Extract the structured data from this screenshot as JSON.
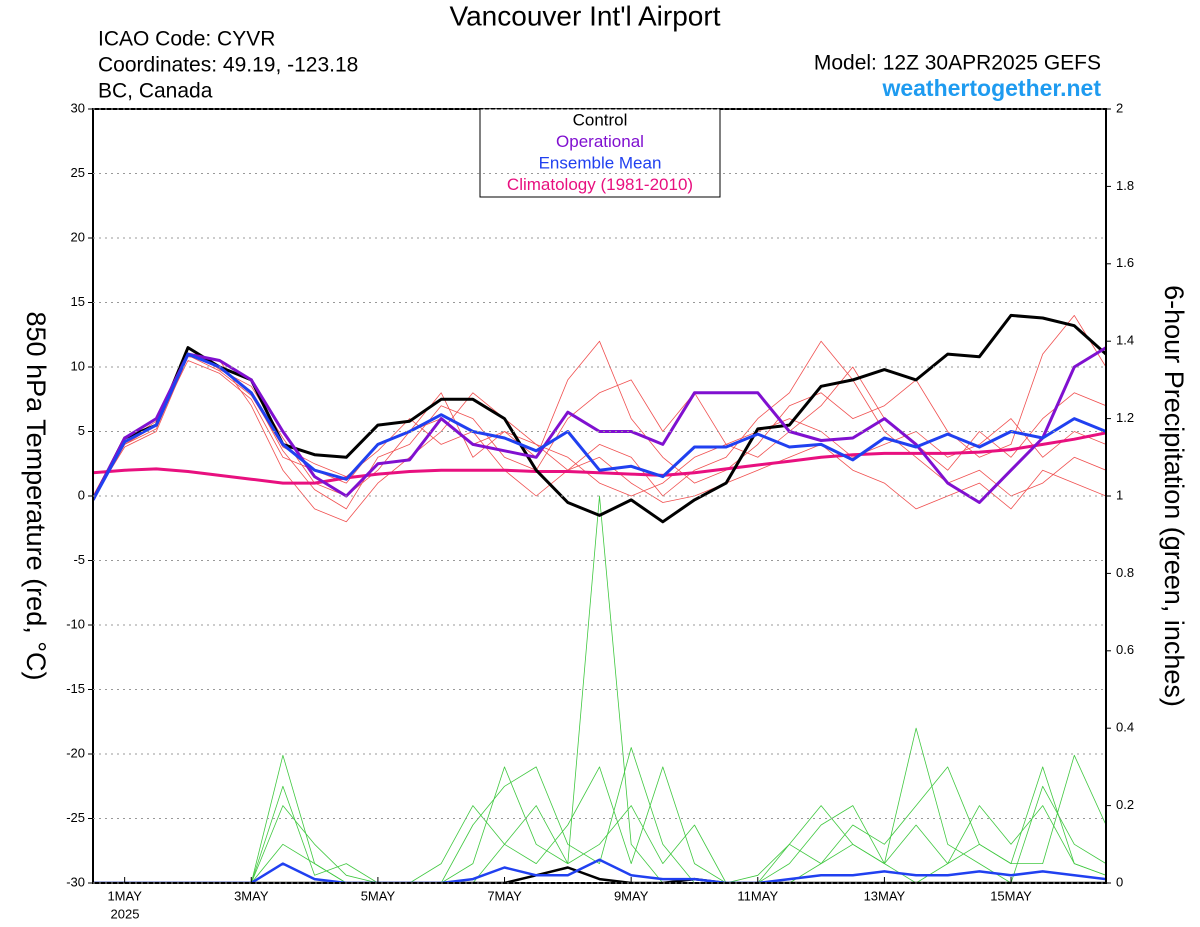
{
  "chart_data": {
    "type": "line",
    "title": "Vancouver Int'l Airport",
    "info_lines": [
      "ICAO Code: CYVR",
      "Coordinates: 49.19, -123.18",
      "BC, Canada"
    ],
    "model": "Model: 12Z 30APR2025 GEFS",
    "site": "weathertogether.net",
    "ylabel": "850 hPa Temperature (red, °C)",
    "y2label": "6-hour Precipitation (green, inches)",
    "x_year_label": "2025",
    "x": [
      0.5,
      1,
      1.5,
      2,
      2.5,
      3,
      3.5,
      4,
      4.5,
      5,
      5.5,
      6,
      6.5,
      7,
      7.5,
      8,
      8.5,
      9,
      9.5,
      10,
      10.5,
      11,
      11.5,
      12,
      12.5,
      13,
      13.5,
      14,
      14.5,
      15,
      15.5,
      16,
      16.5
    ],
    "xlim": [
      0.5,
      16.5
    ],
    "xticks": [
      {
        "value": 1,
        "label": "1MAY"
      },
      {
        "value": 3,
        "label": "3MAY"
      },
      {
        "value": 5,
        "label": "5MAY"
      },
      {
        "value": 7,
        "label": "7MAY"
      },
      {
        "value": 9,
        "label": "9MAY"
      },
      {
        "value": 11,
        "label": "11MAY"
      },
      {
        "value": 13,
        "label": "13MAY"
      },
      {
        "value": 15,
        "label": "15MAY"
      }
    ],
    "ylim": [
      -30,
      30
    ],
    "yticks": [
      -30,
      -25,
      -20,
      -15,
      -10,
      -5,
      0,
      5,
      10,
      15,
      20,
      25,
      30
    ],
    "y2lim": [
      0,
      2
    ],
    "y2ticks": [
      0,
      0.2,
      0.4,
      0.6,
      0.8,
      1,
      1.2,
      1.4,
      1.6,
      1.8,
      2
    ],
    "grid": true,
    "legend": "top",
    "series": [
      {
        "name": "Control",
        "color": "#000000",
        "values": [
          -0.3,
          4.5,
          5.5,
          11.5,
          10,
          9,
          4,
          3.2,
          3,
          5.5,
          5.8,
          7.5,
          7.5,
          6,
          2,
          -0.5,
          -1.5,
          -0.3,
          -2,
          -0.3,
          1,
          5.2,
          5.5,
          8.5,
          9,
          9.8,
          9,
          11,
          10.8,
          14,
          13.8,
          13.2,
          11
        ]
      },
      {
        "name": "Operational",
        "color": "#8010d0",
        "values": [
          -0.3,
          4.5,
          6,
          11,
          10.5,
          9,
          5,
          1.5,
          0,
          2.5,
          2.8,
          6,
          4,
          3.5,
          3,
          6.5,
          5,
          5,
          4,
          8,
          8,
          8,
          5,
          4.3,
          4.5,
          6,
          4,
          1,
          -0.5,
          2,
          4.5,
          10,
          11.5
        ]
      },
      {
        "name": "Ensemble Mean",
        "color": "#2040f0",
        "values": [
          -0.3,
          4.2,
          5.5,
          11,
          10,
          8,
          4,
          2,
          1.3,
          4,
          5,
          6.3,
          5,
          4.5,
          3.5,
          5,
          2,
          2.3,
          1.5,
          3.8,
          3.8,
          4.8,
          3.8,
          4,
          2.8,
          4.5,
          3.8,
          4.8,
          3.8,
          5,
          4.5,
          6,
          5
        ]
      },
      {
        "name": "Climatology (1981-2010)",
        "color": "#e8107f",
        "values": [
          1.8,
          2.0,
          2.1,
          1.9,
          1.6,
          1.3,
          1.0,
          1.0,
          1.4,
          1.7,
          1.9,
          2.0,
          2.0,
          2.0,
          1.9,
          1.9,
          1.8,
          1.7,
          1.6,
          1.8,
          2.1,
          2.4,
          2.7,
          3.0,
          3.2,
          3.3,
          3.3,
          3.3,
          3.4,
          3.6,
          4.0,
          4.4,
          4.9
        ]
      }
    ],
    "precip_series": [
      {
        "color": "#000000",
        "axis": "y2",
        "values": [
          0,
          0,
          0,
          0,
          0,
          0,
          0,
          0,
          0,
          0,
          0,
          0,
          0,
          0,
          0.02,
          0.04,
          0.01,
          0,
          0,
          0.01,
          0,
          0,
          0,
          0,
          0,
          0,
          0,
          0,
          0,
          0,
          0,
          0,
          0
        ]
      },
      {
        "color": "#2040f0",
        "axis": "y2",
        "values": [
          0,
          0,
          0,
          0,
          0,
          0,
          0.05,
          0.01,
          0,
          0,
          0,
          0,
          0.01,
          0.04,
          0.02,
          0.02,
          0.06,
          0.02,
          0.01,
          0.01,
          0,
          0,
          0.01,
          0.02,
          0.02,
          0.03,
          0.02,
          0.02,
          0.03,
          0.02,
          0.03,
          0.02,
          0.01
        ]
      }
    ],
    "ensemble_temperature": {
      "color": "#f05050",
      "values": [
        [
          -0.3,
          4,
          5.5,
          10.5,
          9.5,
          7.5,
          3,
          2,
          1,
          4,
          5,
          6,
          4,
          5,
          4,
          3,
          1,
          0,
          1,
          3,
          4,
          5,
          6,
          5,
          3,
          4,
          5,
          3,
          4,
          6,
          3,
          5,
          4
        ],
        [
          0,
          4.5,
          6,
          11,
          10,
          8,
          3.5,
          0.5,
          -1,
          3,
          4,
          7,
          6,
          3,
          2,
          6,
          8,
          9,
          5,
          8,
          4,
          3,
          5,
          7,
          10,
          6,
          4,
          2,
          5,
          3,
          6,
          8,
          7
        ],
        [
          -0.2,
          3.8,
          5,
          10.8,
          10.5,
          7,
          2,
          -1,
          -2,
          1,
          3,
          5,
          8,
          6,
          4,
          2,
          4,
          3,
          0,
          2,
          3,
          6,
          8,
          12,
          9,
          5,
          3,
          1,
          2,
          0,
          1,
          3,
          2
        ],
        [
          0,
          4.2,
          5.8,
          11.5,
          9.8,
          8.5,
          4.5,
          1,
          0,
          2,
          5,
          8,
          3,
          5,
          3,
          9,
          12,
          6,
          3,
          1,
          2,
          4,
          7,
          8,
          6,
          7,
          9,
          5,
          3,
          4,
          11,
          14,
          10
        ],
        [
          -0.4,
          4,
          5.2,
          10.9,
          9.7,
          7.8,
          3.8,
          2.5,
          1.5,
          3.5,
          6,
          4,
          5,
          2,
          0,
          2,
          3,
          1,
          -0.5,
          0,
          1,
          2,
          3,
          4,
          2,
          1,
          -1,
          0,
          1,
          -1,
          2,
          1,
          0
        ]
      ]
    },
    "ensemble_precip": {
      "color": "#40c840",
      "axis": "y2",
      "values": [
        [
          0,
          0,
          0,
          0,
          0,
          0,
          0.33,
          0.05,
          0,
          0,
          0,
          0,
          0,
          0.1,
          0.2,
          0.05,
          1.0,
          0.1,
          0,
          0,
          0,
          0,
          0,
          0.05,
          0.1,
          0.05,
          0,
          0.05,
          0.1,
          0.05,
          0.05,
          0.33,
          0.15
        ],
        [
          0,
          0,
          0,
          0,
          0,
          0,
          0.2,
          0.1,
          0.02,
          0,
          0,
          0,
          0.15,
          0.25,
          0.3,
          0.1,
          0.05,
          0.35,
          0.1,
          0,
          0,
          0,
          0.05,
          0.15,
          0.2,
          0.05,
          0.4,
          0.1,
          0.05,
          0,
          0.25,
          0.1,
          0.05
        ],
        [
          0,
          0,
          0,
          0,
          0,
          0,
          0.1,
          0.05,
          0,
          0,
          0,
          0.05,
          0.2,
          0.1,
          0.05,
          0.15,
          0.3,
          0.05,
          0.3,
          0.05,
          0,
          0.02,
          0.1,
          0.05,
          0.15,
          0.1,
          0.2,
          0.3,
          0.1,
          0.05,
          0.3,
          0.05,
          0.02
        ],
        [
          0,
          0,
          0,
          0,
          0,
          0,
          0.25,
          0.02,
          0.05,
          0,
          0,
          0,
          0.05,
          0.3,
          0.1,
          0.05,
          0.1,
          0.2,
          0.05,
          0.15,
          0,
          0,
          0.1,
          0.2,
          0.1,
          0.05,
          0.15,
          0.05,
          0.2,
          0.1,
          0.2,
          0.05,
          0.02
        ]
      ]
    }
  }
}
